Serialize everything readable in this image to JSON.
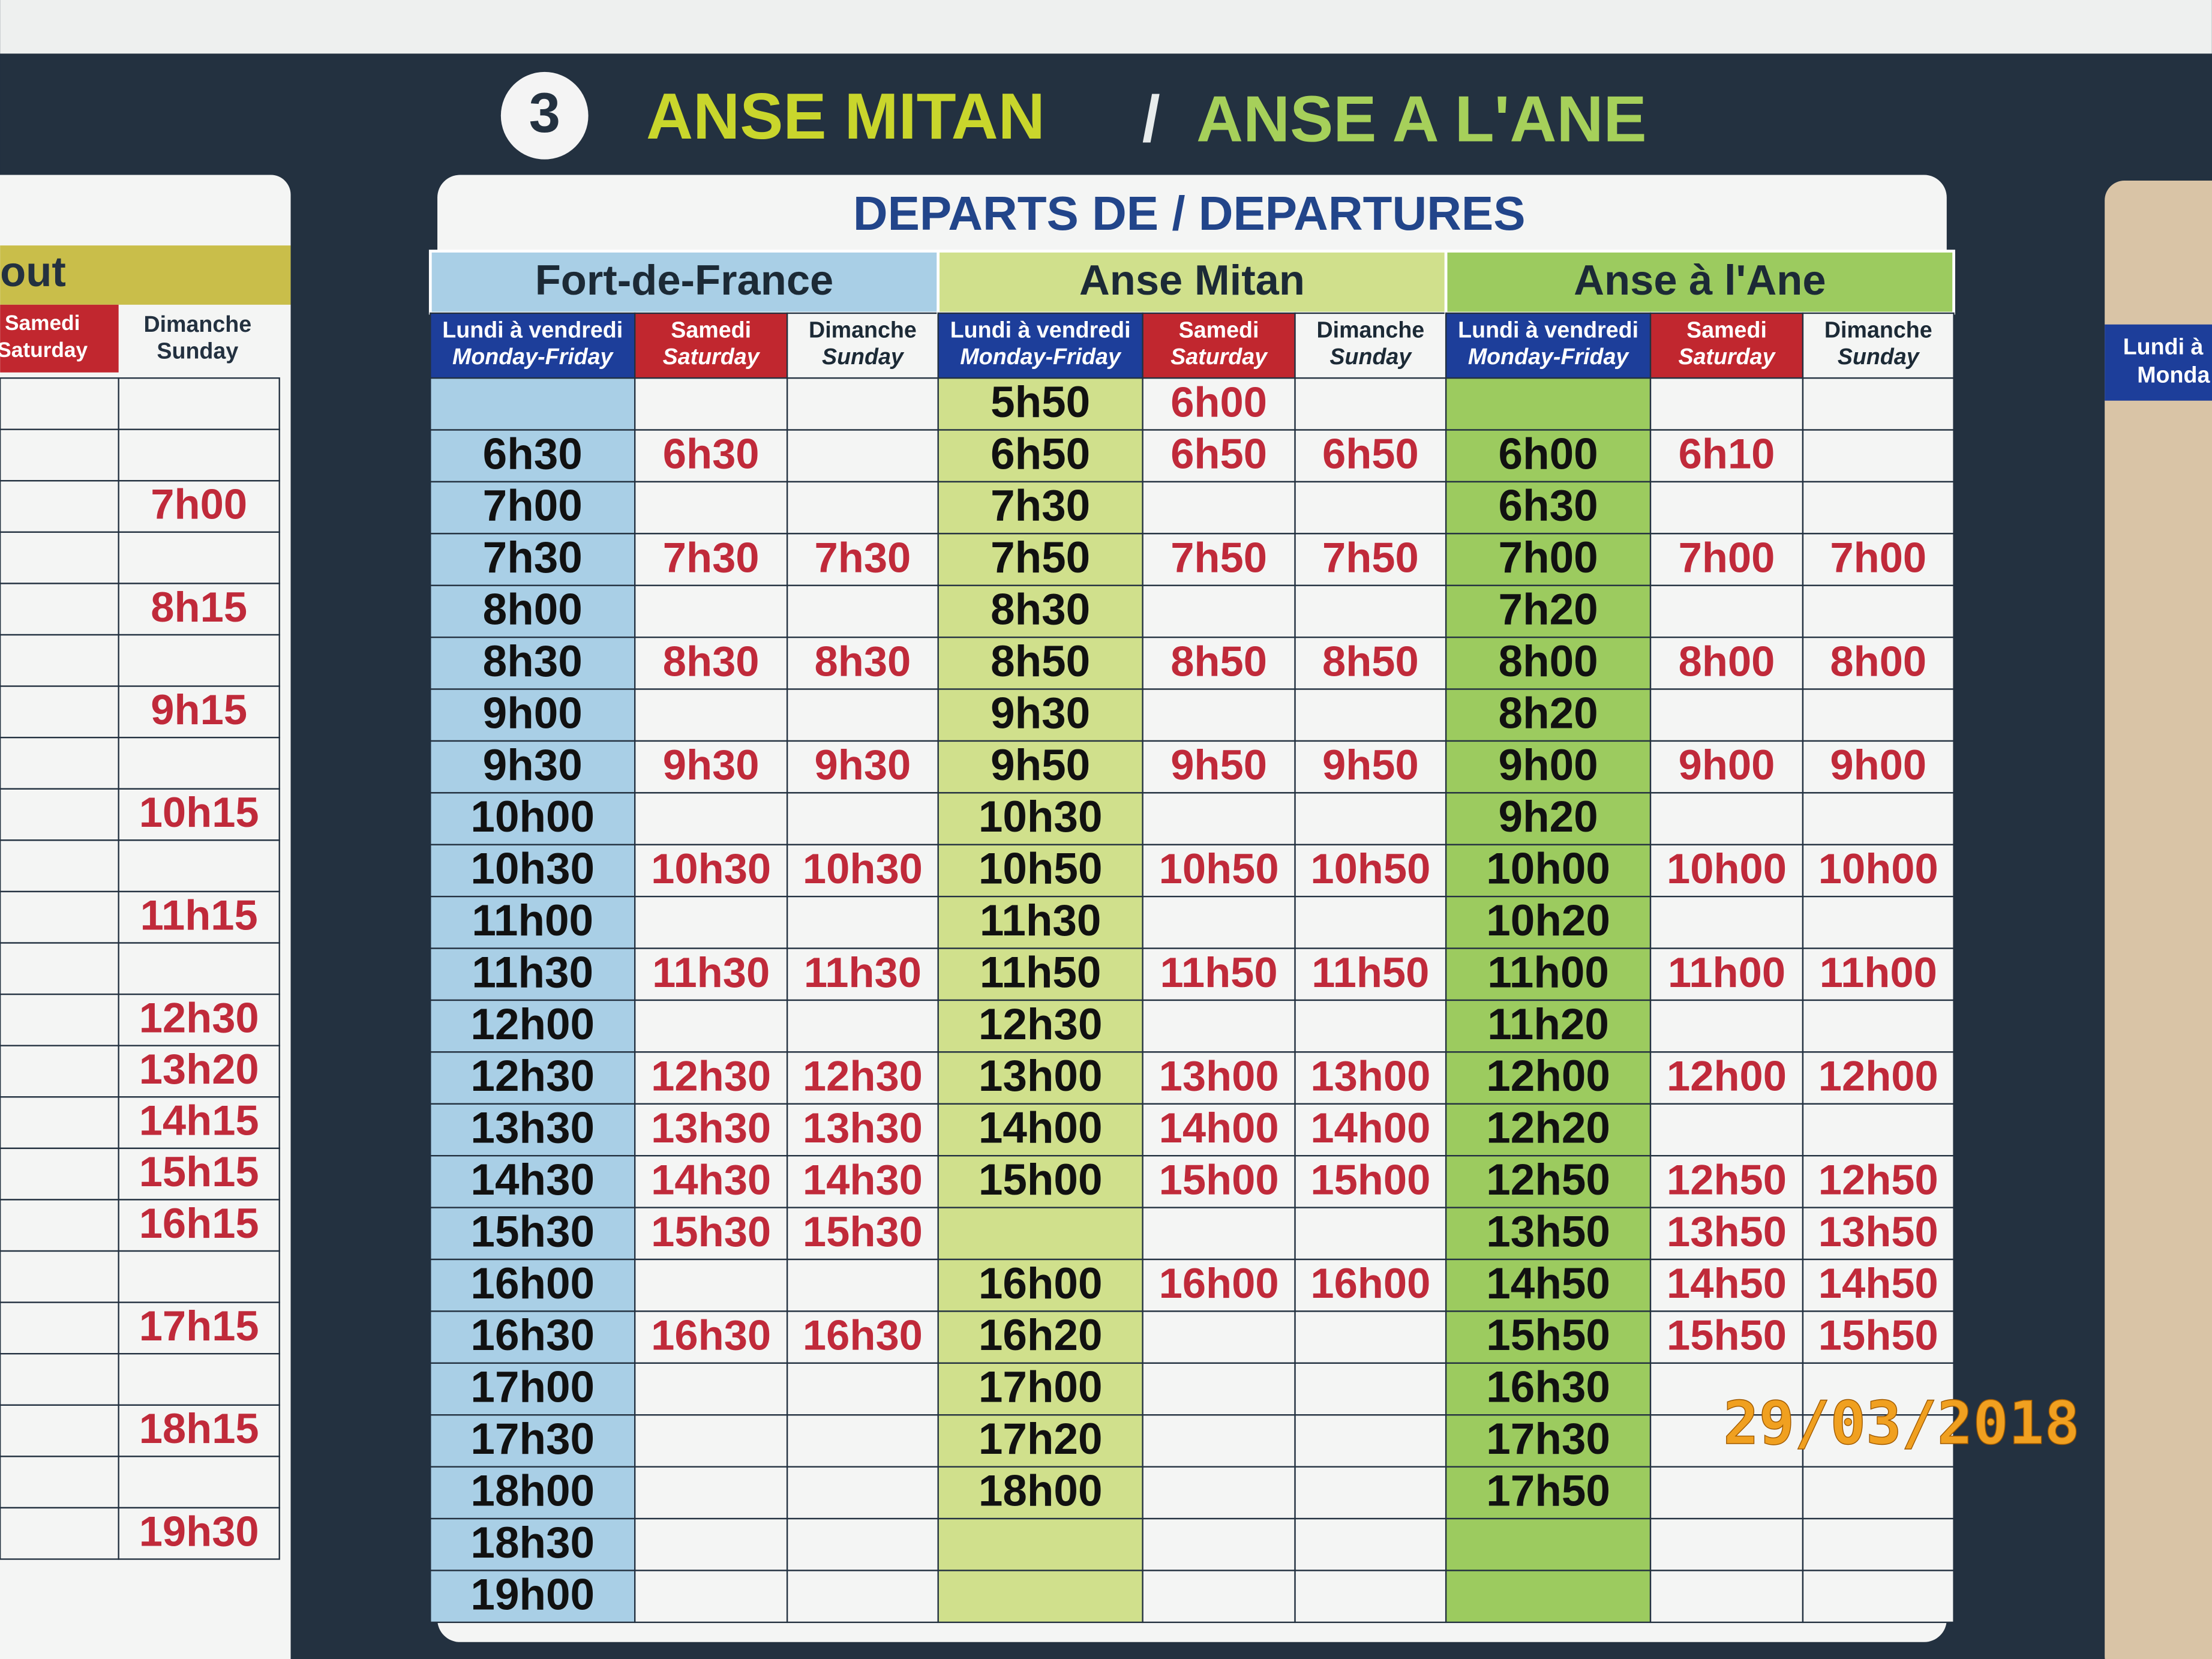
{
  "header": {
    "number": "3",
    "from": "ANSE MITAN",
    "separator": "/",
    "to": "ANSE A L'ANE"
  },
  "panel_title": "DEPARTS DE / DEPARTURES",
  "stations": [
    {
      "name": "Fort-de-France",
      "columns": [
        {
          "fr": "Lundi à vendredi",
          "en": "Monday-Friday",
          "times": [
            null,
            "6h30",
            "7h00",
            "7h30",
            "8h00",
            "8h30",
            "9h00",
            "9h30",
            "10h00",
            "10h30",
            "11h00",
            "11h30",
            "12h00",
            "12h30",
            "13h30",
            "14h30",
            "15h30",
            "16h00",
            "16h30",
            "17h00",
            "17h30",
            "18h00",
            "18h30",
            "19h00"
          ]
        },
        {
          "fr": "Samedi",
          "en": "Saturday",
          "times": [
            null,
            "6h30",
            null,
            "7h30",
            null,
            "8h30",
            null,
            "9h30",
            null,
            "10h30",
            null,
            "11h30",
            null,
            "12h30",
            "13h30",
            "14h30",
            "15h30",
            null,
            "16h30",
            null,
            null,
            null,
            null,
            null
          ]
        },
        {
          "fr": "Dimanche",
          "en": "Sunday",
          "times": [
            null,
            null,
            null,
            "7h30",
            null,
            "8h30",
            null,
            "9h30",
            null,
            "10h30",
            null,
            "11h30",
            null,
            "12h30",
            "13h30",
            "14h30",
            "15h30",
            null,
            "16h30",
            null,
            null,
            null,
            null,
            null
          ]
        }
      ]
    },
    {
      "name": "Anse Mitan",
      "columns": [
        {
          "fr": "Lundi à vendredi",
          "en": "Monday-Friday",
          "times": [
            "5h50",
            "6h50",
            "7h30",
            "7h50",
            "8h30",
            "8h50",
            "9h30",
            "9h50",
            "10h30",
            "10h50",
            "11h30",
            "11h50",
            "12h30",
            "13h00",
            "14h00",
            "15h00",
            null,
            "16h00",
            "16h20",
            "17h00",
            "17h20",
            "18h00",
            null,
            null
          ]
        },
        {
          "fr": "Samedi",
          "en": "Saturday",
          "times": [
            "6h00",
            "6h50",
            null,
            "7h50",
            null,
            "8h50",
            null,
            "9h50",
            null,
            "10h50",
            null,
            "11h50",
            null,
            "13h00",
            "14h00",
            "15h00",
            null,
            "16h00",
            null,
            null,
            null,
            null,
            null,
            null
          ]
        },
        {
          "fr": "Dimanche",
          "en": "Sunday",
          "times": [
            null,
            "6h50",
            null,
            "7h50",
            null,
            "8h50",
            null,
            "9h50",
            null,
            "10h50",
            null,
            "11h50",
            null,
            "13h00",
            "14h00",
            "15h00",
            null,
            "16h00",
            null,
            null,
            null,
            null,
            null,
            null
          ]
        }
      ]
    },
    {
      "name": "Anse à l'Ane",
      "columns": [
        {
          "fr": "Lundi à vendredi",
          "en": "Monday-Friday",
          "times": [
            null,
            "6h00",
            "6h30",
            "7h00",
            "7h20",
            "8h00",
            "8h20",
            "9h00",
            "9h20",
            "10h00",
            "10h20",
            "11h00",
            "11h20",
            "12h00",
            "12h20",
            "12h50",
            "13h50",
            "14h50",
            "15h50",
            "16h30",
            "17h30",
            "17h50",
            null,
            null
          ]
        },
        {
          "fr": "Samedi",
          "en": "Saturday",
          "times": [
            null,
            "6h10",
            null,
            "7h00",
            null,
            "8h00",
            null,
            "9h00",
            null,
            "10h00",
            null,
            "11h00",
            null,
            "12h00",
            null,
            "12h50",
            "13h50",
            "14h50",
            "15h50",
            null,
            null,
            null,
            null,
            null
          ]
        },
        {
          "fr": "Dimanche",
          "en": "Sunday",
          "times": [
            null,
            null,
            null,
            "7h00",
            null,
            "8h00",
            null,
            "9h00",
            null,
            "10h00",
            null,
            "11h00",
            null,
            "12h00",
            null,
            "12h50",
            "13h50",
            "14h50",
            "15h50",
            null,
            null,
            null,
            null,
            null
          ]
        }
      ]
    }
  ],
  "left_panel": {
    "title": "out",
    "saturday": {
      "fr": "Samedi",
      "en": "Saturday"
    },
    "sunday": {
      "fr": "Dimanche",
      "en": "Sunday"
    },
    "sunday_times": [
      null,
      null,
      "7h00",
      null,
      "8h15",
      null,
      "9h15",
      null,
      "10h15",
      null,
      "11h15",
      null,
      "12h30",
      "13h20",
      "14h15",
      "15h15",
      "16h15",
      null,
      "17h15",
      null,
      "18h15",
      null,
      "19h30"
    ]
  },
  "right_panel": {
    "fr": "Lundi à",
    "en": "Monda"
  },
  "date_stamp": "29/03/2018"
}
